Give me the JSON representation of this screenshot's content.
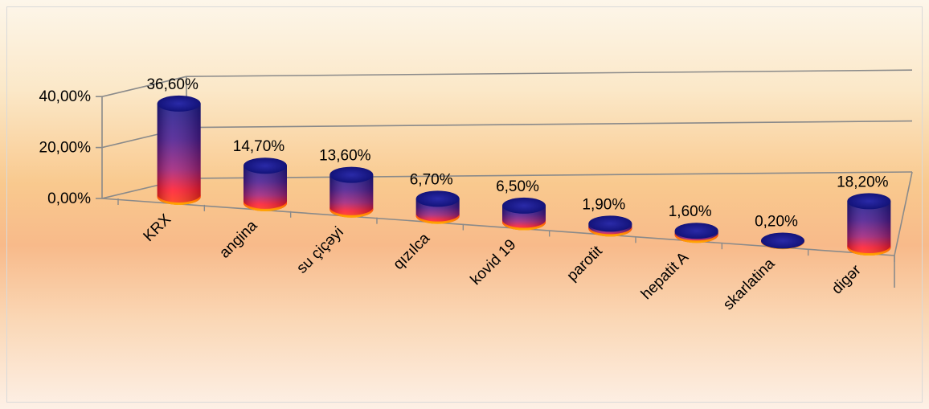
{
  "chart_data": {
    "type": "bar",
    "categories": [
      "KRX",
      "angina",
      "su çiçəyi",
      "qızılca",
      "kovid 19",
      "parotit",
      "hepatit A",
      "skarlatina",
      "digər"
    ],
    "values": [
      36.6,
      14.7,
      13.6,
      6.7,
      6.5,
      1.9,
      1.6,
      0.2,
      18.2
    ],
    "data_labels": [
      "36,60%",
      "14,70%",
      "13,60%",
      "6,70%",
      "6,50%",
      "1,90%",
      "1,60%",
      "0,20%",
      "18,20%"
    ],
    "y_ticks": [
      0,
      20,
      40
    ],
    "y_tick_labels": [
      "0,00%",
      "20,00%",
      "40,00%"
    ],
    "ylim": [
      0,
      40
    ],
    "title": "",
    "xlabel": "",
    "ylabel": "",
    "style": "3d-cylinder",
    "grid": true,
    "legend": "none",
    "colors": {
      "top": "#1a1a8c",
      "mid": "#7a1a7a",
      "bottom": "#ff2020",
      "base": "#ff9a00"
    }
  }
}
